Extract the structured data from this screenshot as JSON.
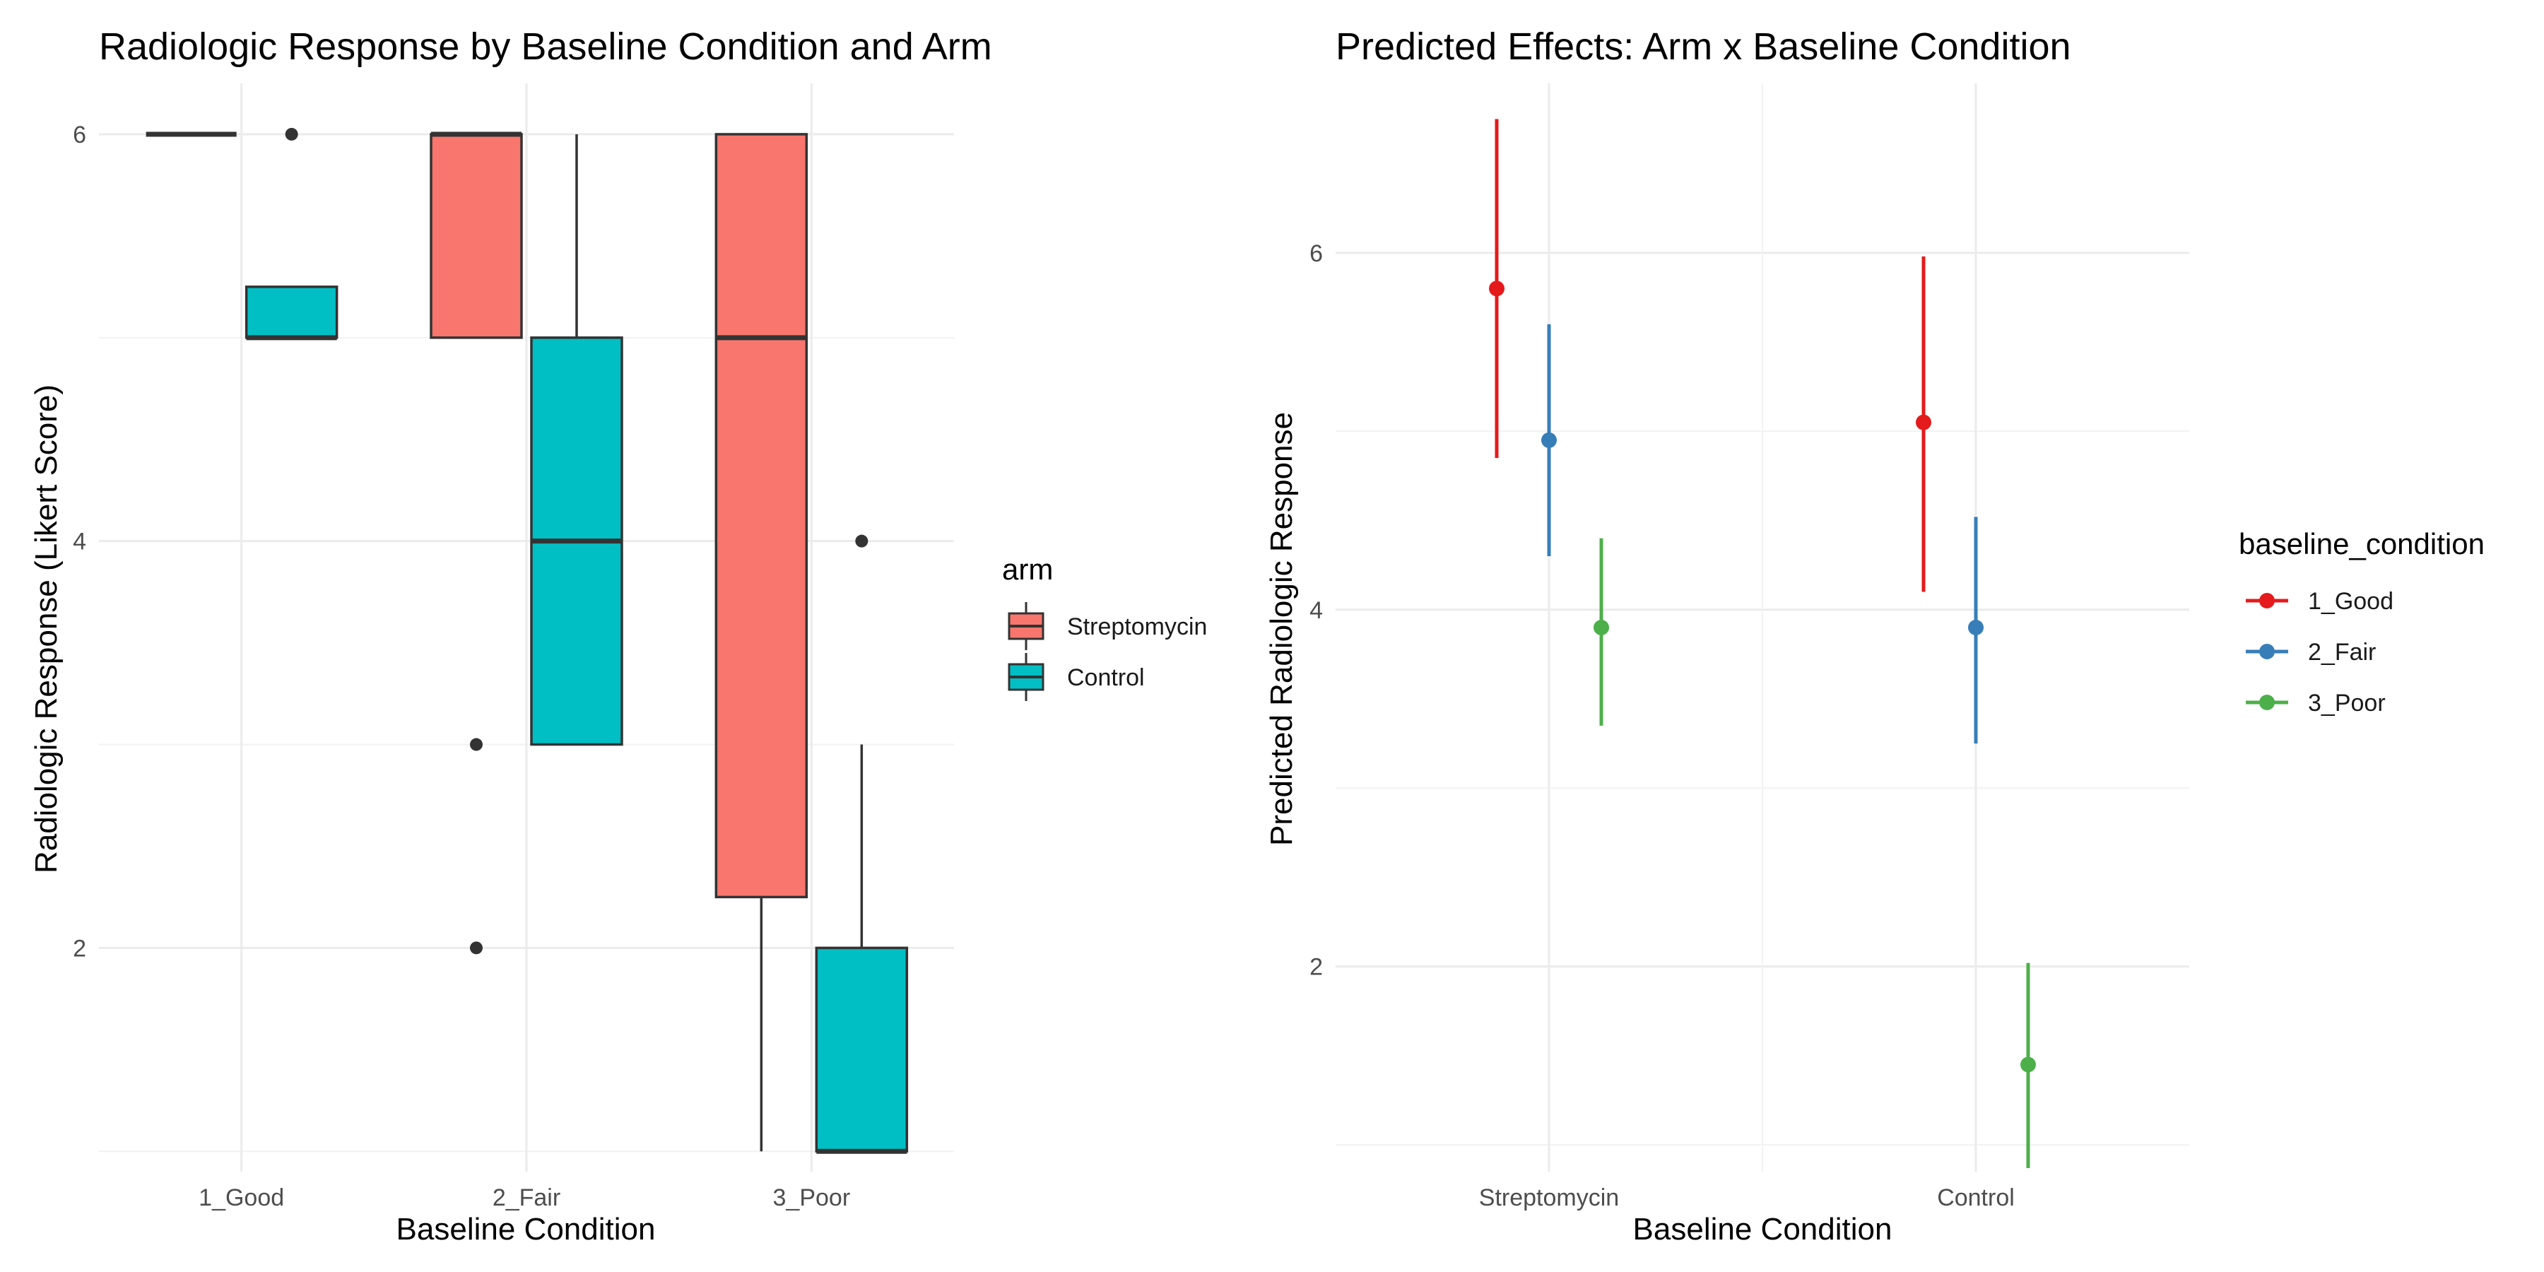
{
  "chart_data": [
    {
      "type": "box",
      "title": "Radiologic Response by Baseline Condition and Arm",
      "xlabel": "Baseline Condition",
      "ylabel": "Radiologic Response (Likert Score)",
      "categories": [
        "1_Good",
        "2_Fair",
        "3_Poor"
      ],
      "ylim": [
        0.9,
        6.25
      ],
      "yticks": [
        2,
        4,
        6
      ],
      "legend": {
        "title": "arm",
        "position": "right"
      },
      "series": [
        {
          "name": "Streptomycin",
          "color": "#F8766D",
          "boxes": [
            {
              "category": "1_Good",
              "min": 6,
              "q1": 6,
              "median": 6,
              "q3": 6,
              "max": 6,
              "outliers": []
            },
            {
              "category": "2_Fair",
              "min": 5,
              "q1": 5,
              "median": 6,
              "q3": 6,
              "max": 6,
              "outliers": [
                3,
                2
              ]
            },
            {
              "category": "3_Poor",
              "min": 1,
              "q1": 2.25,
              "median": 5,
              "q3": 6,
              "max": 6,
              "outliers": []
            }
          ]
        },
        {
          "name": "Control",
          "color": "#00BFC4",
          "boxes": [
            {
              "category": "1_Good",
              "min": 5,
              "q1": 5,
              "median": 5,
              "q3": 5.25,
              "max": 5.25,
              "outliers": [
                6
              ]
            },
            {
              "category": "2_Fair",
              "min": 3,
              "q1": 3,
              "median": 4,
              "q3": 5,
              "max": 6,
              "outliers": []
            },
            {
              "category": "3_Poor",
              "min": 1,
              "q1": 1,
              "median": 1,
              "q3": 2,
              "max": 3,
              "outliers": [
                4
              ]
            }
          ]
        }
      ]
    },
    {
      "type": "pointrange",
      "title": "Predicted Effects: Arm x Baseline Condition",
      "xlabel": "Baseline Condition",
      "ylabel": "Predicted Radiologic Response",
      "categories": [
        "Streptomycin",
        "Control"
      ],
      "ylim": [
        0.85,
        6.95
      ],
      "yticks": [
        2,
        4,
        6
      ],
      "legend": {
        "title": "baseline_condition",
        "position": "right"
      },
      "series": [
        {
          "name": "1_Good",
          "color": "#E41A1C",
          "values": [
            {
              "category": "Streptomycin",
              "y": 5.8,
              "lower": 4.85,
              "upper": 6.75
            },
            {
              "category": "Control",
              "y": 5.05,
              "lower": 4.1,
              "upper": 5.98
            }
          ]
        },
        {
          "name": "2_Fair",
          "color": "#377EB8",
          "values": [
            {
              "category": "Streptomycin",
              "y": 4.95,
              "lower": 4.3,
              "upper": 5.6
            },
            {
              "category": "Control",
              "y": 3.9,
              "lower": 3.25,
              "upper": 4.52
            }
          ]
        },
        {
          "name": "3_Poor",
          "color": "#4DAF4A",
          "values": [
            {
              "category": "Streptomycin",
              "y": 3.9,
              "lower": 3.35,
              "upper": 4.4
            },
            {
              "category": "Control",
              "y": 1.45,
              "lower": 0.87,
              "upper": 2.02
            }
          ]
        }
      ]
    }
  ]
}
